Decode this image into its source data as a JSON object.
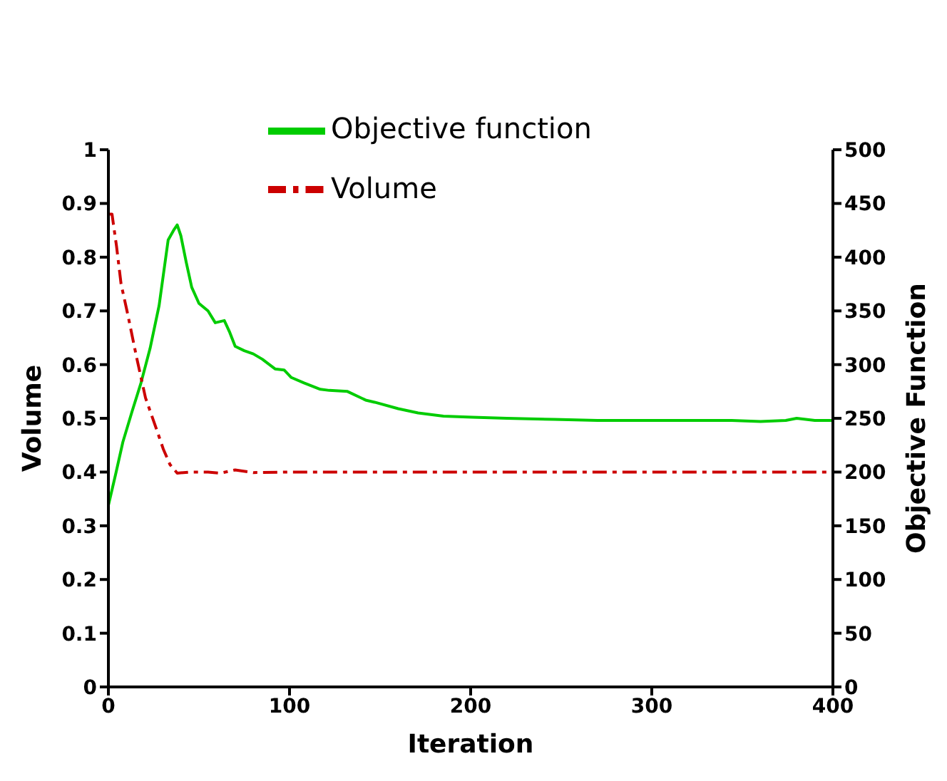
{
  "chart_data": {
    "type": "line",
    "xlabel": "Iteration",
    "ylabel": "Volume",
    "y2label": "Objective Function",
    "xlim": [
      0,
      400
    ],
    "xticks": [
      0,
      100,
      200,
      300,
      400
    ],
    "ylim": [
      0,
      1
    ],
    "yticks": [
      0,
      0.1,
      0.2,
      0.3,
      0.4,
      0.5,
      0.6,
      0.7,
      0.8,
      0.9,
      1
    ],
    "y2lim": [
      0,
      500
    ],
    "y2ticks": [
      0,
      50,
      100,
      150,
      200,
      250,
      300,
      350,
      400,
      450,
      500
    ],
    "grid": false,
    "legend": "top",
    "marker": "none",
    "series": [
      {
        "name": "Objective function",
        "color": "#00cc00",
        "axis": "y2",
        "line_style": "solid",
        "x": [
          0,
          4,
          8,
          13,
          18,
          23,
          28,
          33,
          36,
          38,
          40,
          43,
          46,
          50,
          55,
          59,
          64,
          67,
          70,
          75,
          80,
          85,
          92,
          97,
          101,
          108,
          117,
          122,
          132,
          142,
          147,
          160,
          171,
          185,
          201,
          220,
          246,
          270,
          300,
          320,
          344,
          360,
          374,
          380,
          390,
          400
        ],
        "values": [
          169,
          198,
          228,
          256,
          283,
          315,
          355,
          416,
          425,
          430,
          420,
          395,
          372,
          357,
          350,
          339,
          341,
          330,
          317,
          313,
          310,
          305,
          296,
          295,
          288,
          283,
          277,
          276,
          275,
          267,
          265,
          259,
          255,
          252,
          251,
          250,
          249,
          248,
          248,
          248,
          248,
          247,
          248,
          250,
          248,
          248
        ]
      },
      {
        "name": "Volume",
        "color": "#cc0000",
        "axis": "y",
        "line_style": "dashed",
        "x": [
          0,
          2,
          4.5,
          7,
          10.6,
          15.6,
          20.5,
          25.5,
          30.4,
          34,
          38,
          45,
          55,
          62,
          70,
          80,
          100,
          130,
          160,
          200,
          250,
          300,
          350,
          400
        ],
        "values": [
          0.88,
          0.88,
          0.82,
          0.75,
          0.695,
          0.613,
          0.538,
          0.49,
          0.442,
          0.414,
          0.398,
          0.4,
          0.4,
          0.398,
          0.404,
          0.399,
          0.4,
          0.4,
          0.4,
          0.4,
          0.4,
          0.4,
          0.4,
          0.4
        ]
      }
    ]
  }
}
